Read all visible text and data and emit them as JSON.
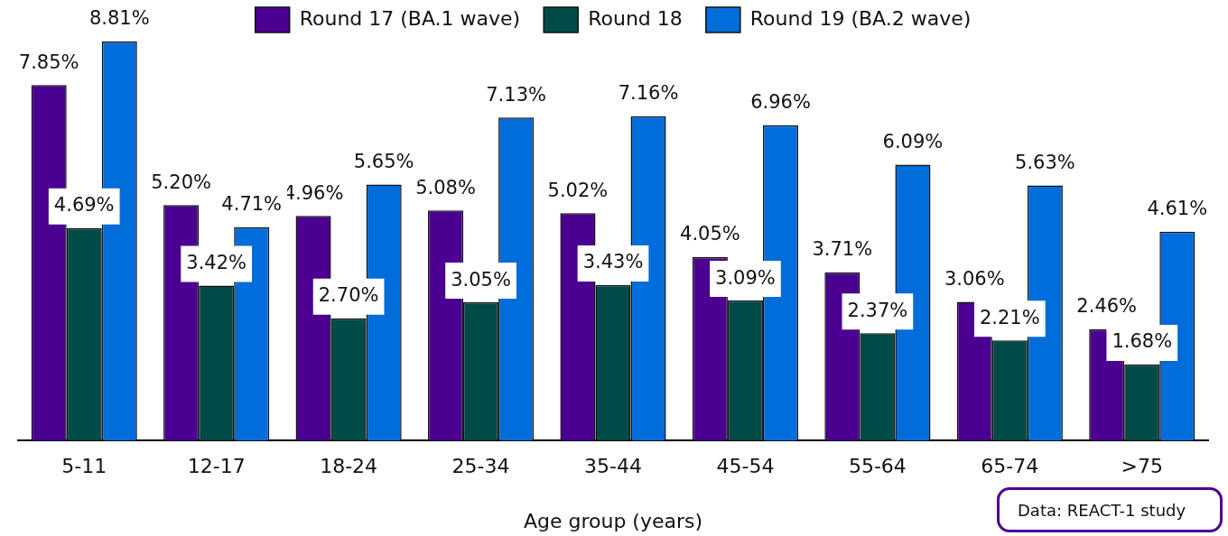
{
  "chart_data": {
    "type": "bar",
    "categories": [
      "5-11",
      "12-17",
      "18-24",
      "25-34",
      "35-44",
      "45-54",
      "55-64",
      "65-74",
      ">75"
    ],
    "series": [
      {
        "name": "Round 17 (BA.1 wave)",
        "color": "#4b0092",
        "values": [
          7.85,
          5.2,
          4.96,
          5.08,
          5.02,
          4.05,
          3.71,
          3.06,
          2.46
        ],
        "value_labels": [
          "7.85%",
          "5.20%",
          "4.96%",
          "5.08%",
          "5.02%",
          "4.05%",
          "3.71%",
          "3.06%",
          "2.46%"
        ]
      },
      {
        "name": "Round 18",
        "color": "#004a48",
        "values": [
          4.69,
          3.42,
          2.7,
          3.05,
          3.43,
          3.09,
          2.37,
          2.21,
          1.68
        ],
        "value_labels": [
          "4.69%",
          "3.42%",
          "2.70%",
          "3.05%",
          "3.43%",
          "3.09%",
          "2.37%",
          "2.21%",
          "1.68%"
        ]
      },
      {
        "name": "Round 19 (BA.2 wave)",
        "color": "#006ddb",
        "values": [
          8.81,
          4.71,
          5.65,
          7.13,
          7.16,
          6.96,
          6.09,
          5.63,
          4.61
        ],
        "value_labels": [
          "8.81%",
          "4.71%",
          "5.65%",
          "7.13%",
          "7.16%",
          "6.96%",
          "6.09%",
          "5.63%",
          "4.61%"
        ]
      }
    ],
    "xlabel": "Age group (years)",
    "legend": "top",
    "tick_labels": "x",
    "annotations": [
      "Data: REACT-1 study"
    ]
  }
}
